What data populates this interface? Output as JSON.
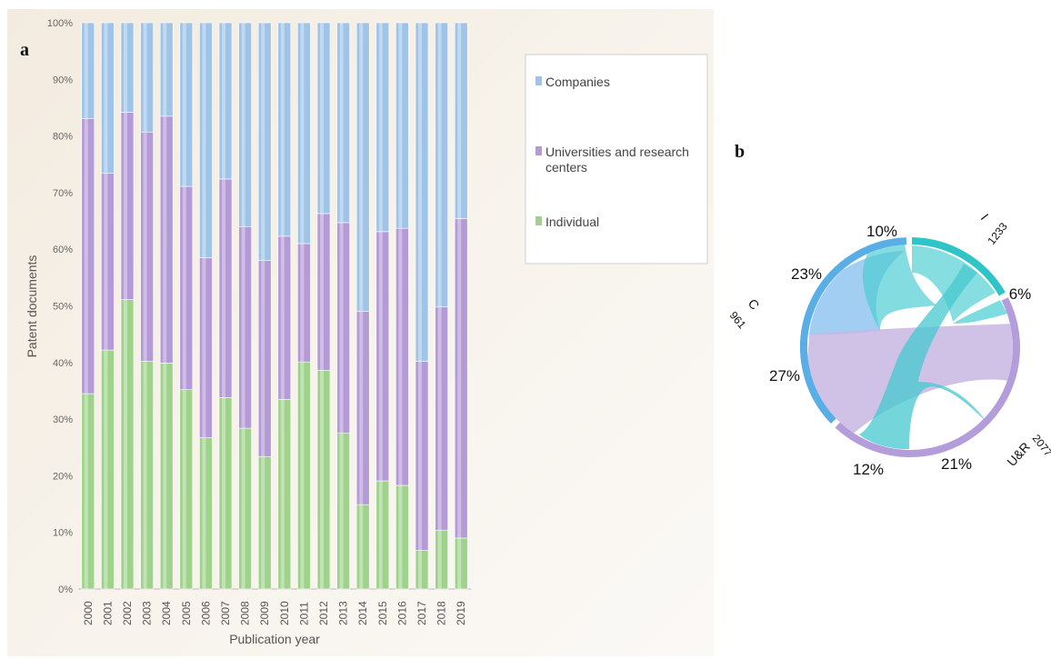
{
  "panel_a_label": "a",
  "panel_b_label": "b",
  "colors": {
    "companies": "#9fc4e8",
    "universities": "#b49ad6",
    "individual": "#9fd38c",
    "chord_individual": "#2ec4c8",
    "chord_companies": "#5aaee6",
    "chord_ur": "#b39ddb"
  },
  "chart_data": [
    {
      "type": "bar",
      "stacked": true,
      "percent": true,
      "xlabel": "Publication year",
      "ylabel": "Patent documents",
      "ylim": [
        0,
        100
      ],
      "yticks": [
        "0%",
        "10%",
        "20%",
        "30%",
        "40%",
        "50%",
        "60%",
        "70%",
        "80%",
        "90%",
        "100%"
      ],
      "categories": [
        "2000",
        "2001",
        "2002",
        "2003",
        "2004",
        "2005",
        "2006",
        "2007",
        "2008",
        "2009",
        "2010",
        "2011",
        "2012",
        "2013",
        "2014",
        "2015",
        "2016",
        "2017",
        "2018",
        "2019"
      ],
      "series": [
        {
          "name": "Individual",
          "values": [
            34.5,
            42.2,
            51.1,
            40.2,
            39.9,
            35.2,
            26.7,
            33.8,
            28.4,
            23.4,
            33.5,
            40.1,
            38.6,
            27.5,
            14.9,
            19.1,
            18.3,
            6.8,
            10.4,
            9.0
          ]
        },
        {
          "name": "Universities and research centers",
          "values": [
            48.6,
            31.2,
            33.1,
            40.5,
            43.6,
            35.9,
            31.8,
            38.6,
            35.6,
            34.6,
            28.8,
            20.9,
            27.7,
            37.2,
            34.1,
            44.0,
            45.4,
            33.4,
            39.4,
            56.4
          ]
        },
        {
          "name": "Companies",
          "values": [
            16.9,
            26.6,
            15.8,
            19.3,
            16.5,
            28.9,
            41.5,
            27.6,
            36.0,
            42.0,
            37.7,
            39.0,
            33.7,
            35.3,
            51.0,
            36.9,
            36.3,
            59.8,
            50.2,
            34.6
          ]
        }
      ],
      "legend": [
        "Companies",
        "Universities and research centers",
        "Individual"
      ],
      "legend_position": "right",
      "grid": false
    },
    {
      "type": "chord",
      "groups": [
        {
          "label": "I",
          "value": "1233"
        },
        {
          "label": "U&R",
          "value": "2077"
        },
        {
          "label": "C",
          "value": "961"
        }
      ],
      "percent_labels": [
        "10%",
        "6%",
        "21%",
        "12%",
        "27%",
        "23%"
      ]
    }
  ]
}
